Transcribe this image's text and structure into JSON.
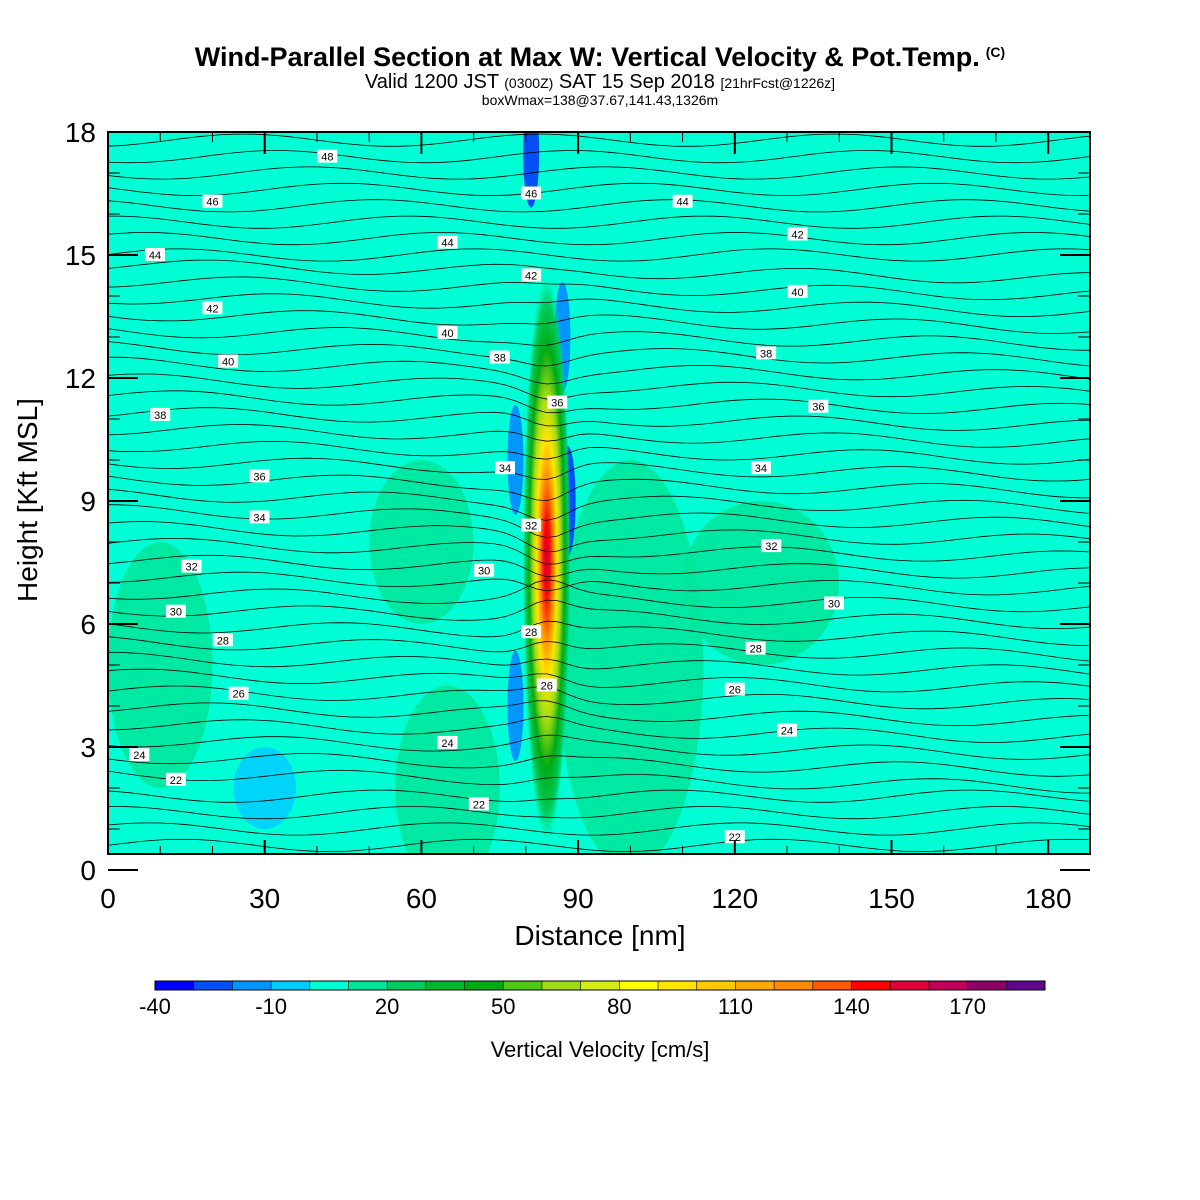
{
  "titles": {
    "main": "Wind-Parallel Section at Max W: Vertical Velocity & Pot.Temp.",
    "copyright": "(C)",
    "valid_prefix": "Valid 1200 JST",
    "valid_utc": "(0300Z)",
    "valid_date": "SAT 15 Sep 2018",
    "forecast": "[21hrFcst@1226z]",
    "boxmax": "boxWmax=138@37.67,141.43,1326m"
  },
  "chart_data": {
    "type": "heatmap",
    "title": "Wind-Parallel Section at Max W: Vertical Velocity & Pot.Temp.",
    "xlabel": "Distance [nm]",
    "ylabel": "Height [Kft MSL]",
    "xlim": [
      0,
      188
    ],
    "ylim": [
      0,
      18
    ],
    "xticks": [
      0,
      30,
      60,
      90,
      120,
      150,
      180
    ],
    "yticks": [
      0,
      3,
      6,
      9,
      12,
      15,
      18
    ],
    "colorbar": {
      "label": "Vertical Velocity [cm/s]",
      "levels": [
        -40,
        -30,
        -20,
        -10,
        0,
        10,
        20,
        30,
        40,
        50,
        60,
        70,
        80,
        90,
        100,
        110,
        120,
        130,
        140,
        150,
        160,
        170,
        180
      ],
      "tick_labels": [
        "-40",
        "-10",
        "20",
        "50",
        "80",
        "110",
        "140",
        "170"
      ],
      "colors": [
        "#0000ff",
        "#0050f5",
        "#0096ff",
        "#00ccff",
        "#00ffd4",
        "#00e59a",
        "#00cc5e",
        "#00b82e",
        "#00aa14",
        "#4ec814",
        "#a0dc14",
        "#d4ec14",
        "#ffff00",
        "#ffe600",
        "#ffc800",
        "#ffaa00",
        "#ff8c00",
        "#ff5a00",
        "#ff0000",
        "#e0003a",
        "#c0005a",
        "#8c0068",
        "#60088c"
      ]
    },
    "updraft": {
      "center_x": 84,
      "peak_w": 138,
      "peak_height": 7.5,
      "bottom": 1,
      "top": 14.2
    },
    "downdrafts": [
      {
        "x": 88,
        "y": 9,
        "w": -30
      },
      {
        "x": 87,
        "y": 13,
        "w": -20
      },
      {
        "x": 78,
        "y": 10,
        "w": -20
      },
      {
        "x": 78,
        "y": 4,
        "w": -20
      },
      {
        "x": 81,
        "y": 17.5,
        "w": -30
      }
    ],
    "theta_labels": [
      {
        "x": 42,
        "y": 17.4,
        "text": "48"
      },
      {
        "x": 20,
        "y": 16.3,
        "text": "46"
      },
      {
        "x": 81,
        "y": 16.5,
        "text": "46"
      },
      {
        "x": 110,
        "y": 16.3,
        "text": "44"
      },
      {
        "x": 9,
        "y": 15.0,
        "text": "44"
      },
      {
        "x": 65,
        "y": 15.3,
        "text": "44"
      },
      {
        "x": 132,
        "y": 15.5,
        "text": "42"
      },
      {
        "x": 81,
        "y": 14.5,
        "text": "42"
      },
      {
        "x": 20,
        "y": 13.7,
        "text": "42"
      },
      {
        "x": 132,
        "y": 14.1,
        "text": "40"
      },
      {
        "x": 65,
        "y": 13.1,
        "text": "40"
      },
      {
        "x": 23,
        "y": 12.4,
        "text": "40"
      },
      {
        "x": 75,
        "y": 12.5,
        "text": "38"
      },
      {
        "x": 126,
        "y": 12.6,
        "text": "38"
      },
      {
        "x": 10,
        "y": 11.1,
        "text": "38"
      },
      {
        "x": 86,
        "y": 11.4,
        "text": "36"
      },
      {
        "x": 136,
        "y": 11.3,
        "text": "36"
      },
      {
        "x": 29,
        "y": 9.6,
        "text": "36"
      },
      {
        "x": 76,
        "y": 9.8,
        "text": "34"
      },
      {
        "x": 125,
        "y": 9.8,
        "text": "34"
      },
      {
        "x": 29,
        "y": 8.6,
        "text": "34"
      },
      {
        "x": 81,
        "y": 8.4,
        "text": "32"
      },
      {
        "x": 127,
        "y": 7.9,
        "text": "32"
      },
      {
        "x": 16,
        "y": 7.4,
        "text": "32"
      },
      {
        "x": 72,
        "y": 7.3,
        "text": "30"
      },
      {
        "x": 139,
        "y": 6.5,
        "text": "30"
      },
      {
        "x": 13,
        "y": 6.3,
        "text": "30"
      },
      {
        "x": 81,
        "y": 5.8,
        "text": "28"
      },
      {
        "x": 22,
        "y": 5.6,
        "text": "28"
      },
      {
        "x": 124,
        "y": 5.4,
        "text": "28"
      },
      {
        "x": 84,
        "y": 4.5,
        "text": "26"
      },
      {
        "x": 25,
        "y": 4.3,
        "text": "26"
      },
      {
        "x": 120,
        "y": 4.4,
        "text": "26"
      },
      {
        "x": 65,
        "y": 3.1,
        "text": "24"
      },
      {
        "x": 130,
        "y": 3.4,
        "text": "24"
      },
      {
        "x": 6,
        "y": 2.8,
        "text": "24"
      },
      {
        "x": 13,
        "y": 2.2,
        "text": "22"
      },
      {
        "x": 71,
        "y": 1.6,
        "text": "22"
      },
      {
        "x": 120,
        "y": 0.8,
        "text": "22"
      }
    ]
  }
}
